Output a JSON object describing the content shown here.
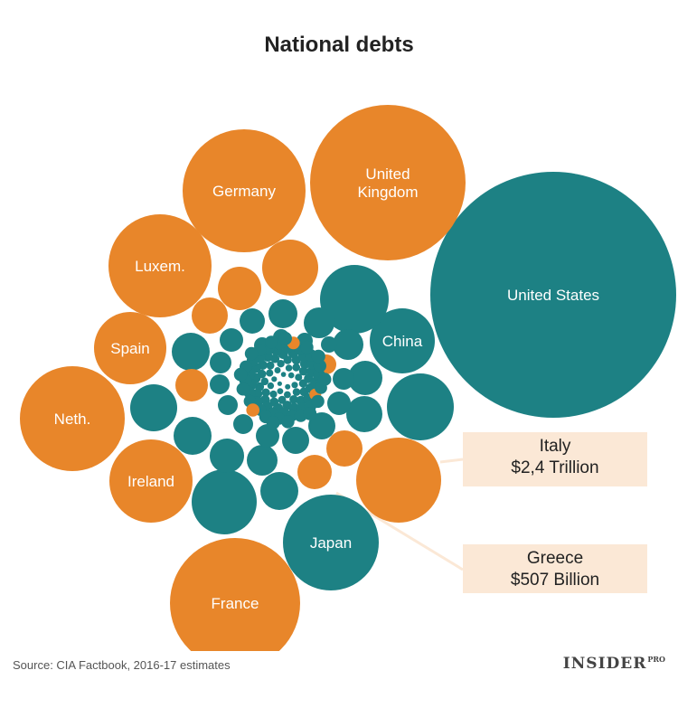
{
  "chart_data": {
    "type": "bubble",
    "title": "National debts",
    "colors": {
      "highlight": "#e8862a",
      "other": "#1d8184",
      "label": "#ffffff",
      "callout_bg": "#fbe8d6"
    },
    "labeled_bubbles": [
      {
        "name": "United States",
        "label": "United States",
        "group": "other"
      },
      {
        "name": "United Kingdom",
        "label": "United\nKingdom",
        "group": "highlight"
      },
      {
        "name": "Germany",
        "label": "Germany",
        "group": "highlight"
      },
      {
        "name": "France",
        "label": "France",
        "group": "highlight"
      },
      {
        "name": "Japan",
        "label": "Japan",
        "group": "other"
      },
      {
        "name": "China",
        "label": "China",
        "group": "other"
      },
      {
        "name": "Netherlands",
        "label": "Neth.",
        "group": "highlight"
      },
      {
        "name": "Luxembourg",
        "label": "Luxem.",
        "group": "highlight"
      },
      {
        "name": "Spain",
        "label": "Spain",
        "group": "highlight"
      },
      {
        "name": "Ireland",
        "label": "Ireland",
        "group": "highlight"
      },
      {
        "name": "Italy",
        "label": "",
        "group": "highlight"
      }
    ],
    "callouts": [
      {
        "country": "Italy",
        "value_text": "$2,4 Trillion",
        "value": 2.4,
        "unit": "trillion USD"
      },
      {
        "country": "Greece",
        "value_text": "$507 Billion",
        "value": 507,
        "unit": "billion USD"
      }
    ],
    "source": "Source: CIA Factbook, 2016-17 estimates"
  },
  "branding": {
    "name": "INSIDER",
    "suffix": "PRO"
  }
}
